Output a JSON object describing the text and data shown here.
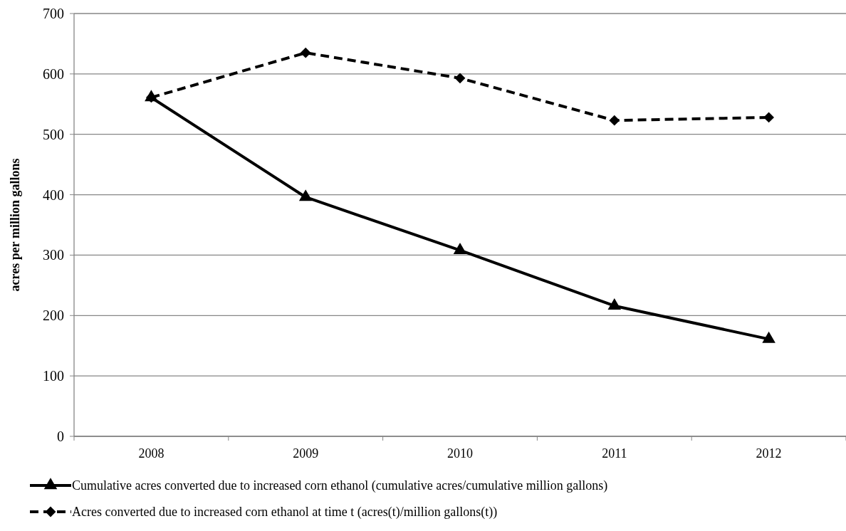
{
  "chart_data": {
    "type": "line",
    "ylabel": "acres per million gallons",
    "categories": [
      "2008",
      "2009",
      "2010",
      "2011",
      "2012"
    ],
    "series": [
      {
        "name": "Cumulative acres converted due to increased corn ethanol (cumulative acres/cumulative million gallons)",
        "color": "#000000",
        "values": [
          561,
          396,
          308,
          216,
          161
        ],
        "marker": "triangle",
        "line_style": "solid"
      },
      {
        "name": "Acres converted due to increased corn ethanol at time t (acres(t)/million gallons(t))",
        "color": "#000000",
        "values": [
          561,
          635,
          593,
          523,
          528
        ],
        "marker": "diamond",
        "line_style": "dashed"
      }
    ],
    "ylim": [
      0,
      700
    ],
    "yticks": [
      0,
      100,
      200,
      300,
      400,
      500,
      600,
      700
    ],
    "grid": "y",
    "legend": "bottom"
  }
}
